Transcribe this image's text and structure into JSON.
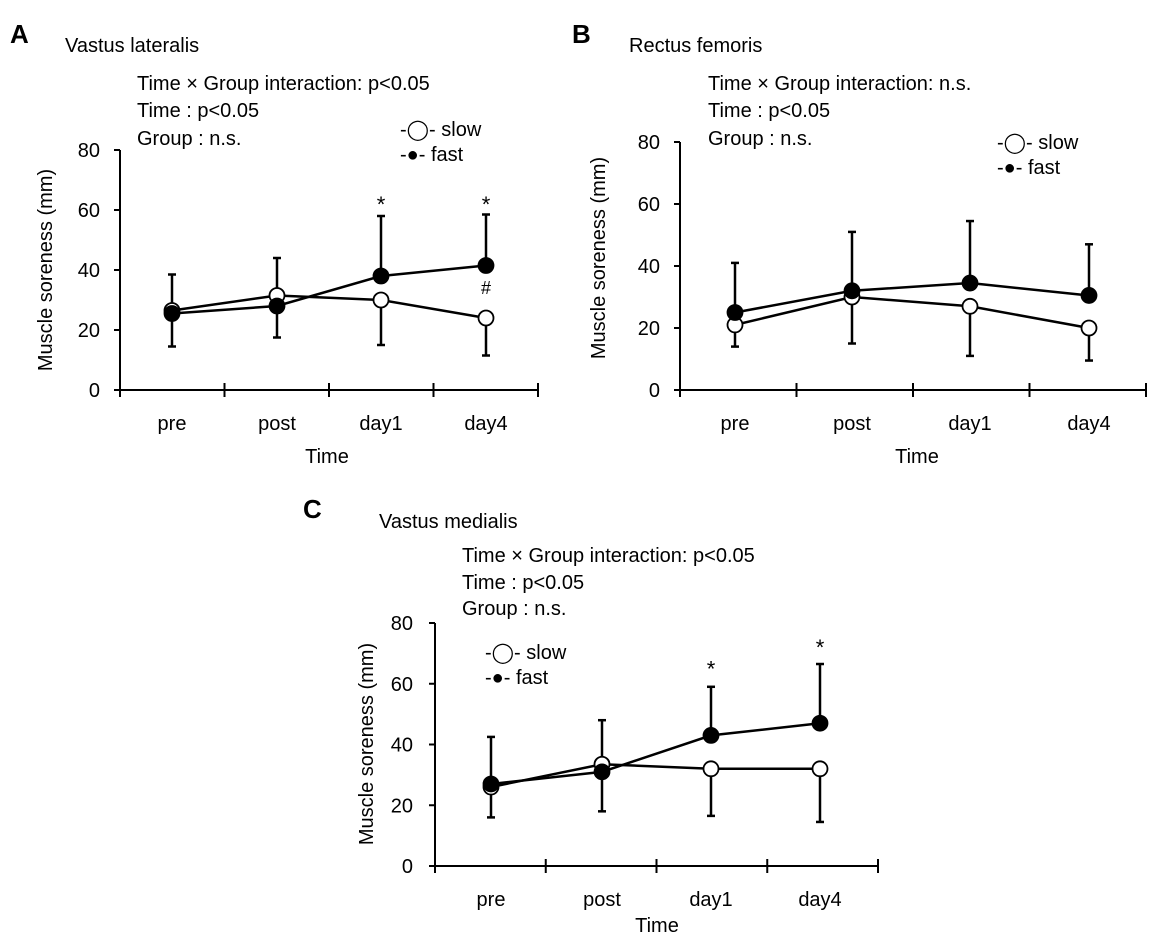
{
  "chart_data": [
    {
      "type": "line",
      "panel": "A",
      "title": "Vastus lateralis",
      "stats": [
        "Time × Group interaction: p<0.05",
        "Time : p<0.05",
        "Group : n.s."
      ],
      "xlabel": "Time",
      "ylabel": "Muscle soreness (mm)",
      "ylim": [
        0,
        80
      ],
      "yticks": [
        0,
        20,
        40,
        60,
        80
      ],
      "categories": [
        "pre",
        "post",
        "day1",
        "day4"
      ],
      "series": [
        {
          "name": "slow",
          "marker": "open",
          "values": [
            26.5,
            31.5,
            30,
            24
          ],
          "sd": [
            12,
            14,
            15,
            12.5
          ],
          "legend_label": "-◯- slow"
        },
        {
          "name": "fast",
          "marker": "filled",
          "values": [
            25.5,
            28,
            38,
            41.5
          ],
          "sd": [
            13,
            16,
            20,
            17
          ],
          "legend_label": "-●- fast"
        }
      ],
      "annotations": [
        {
          "category": "day1",
          "symbol": "*",
          "y": 64
        },
        {
          "category": "day4",
          "symbol": "*",
          "y": 64
        },
        {
          "category": "day4",
          "symbol": "#",
          "y": 32
        }
      ]
    },
    {
      "type": "line",
      "panel": "B",
      "title": "Rectus femoris",
      "stats": [
        "Time × Group interaction: n.s.",
        "Time : p<0.05",
        "Group : n.s."
      ],
      "xlabel": "Time",
      "ylabel": "Muscle soreness (mm)",
      "ylim": [
        0,
        80
      ],
      "yticks": [
        0,
        20,
        40,
        60,
        80
      ],
      "categories": [
        "pre",
        "post",
        "day1",
        "day4"
      ],
      "series": [
        {
          "name": "slow",
          "marker": "open",
          "values": [
            21,
            30,
            27,
            20
          ],
          "sd": [
            7,
            15,
            16,
            10.5
          ],
          "legend_label": "-◯- slow"
        },
        {
          "name": "fast",
          "marker": "filled",
          "values": [
            25,
            32,
            34.5,
            30.5
          ],
          "sd": [
            16,
            19,
            20,
            16.5
          ],
          "legend_label": "-●- fast"
        }
      ],
      "annotations": []
    },
    {
      "type": "line",
      "panel": "C",
      "title": "Vastus medialis",
      "stats": [
        "Time × Group interaction: p<0.05",
        "Time : p<0.05",
        "Group : n.s."
      ],
      "xlabel": "Time",
      "ylabel": "Muscle soreness (mm)",
      "ylim": [
        0,
        80
      ],
      "yticks": [
        0,
        20,
        40,
        60,
        80
      ],
      "categories": [
        "pre",
        "post",
        "day1",
        "day4"
      ],
      "series": [
        {
          "name": "slow",
          "marker": "open",
          "values": [
            26,
            33.5,
            32,
            32
          ],
          "sd": [
            10,
            15.5,
            15.5,
            17.5
          ],
          "legend_label": "-◯- slow"
        },
        {
          "name": "fast",
          "marker": "filled",
          "values": [
            27,
            31,
            43,
            47
          ],
          "sd": [
            15.5,
            17,
            16,
            19.5
          ],
          "legend_label": "-●- fast"
        }
      ],
      "annotations": [
        {
          "category": "day1",
          "symbol": "*",
          "y": 67
        },
        {
          "category": "day4",
          "symbol": "*",
          "y": 74
        }
      ]
    }
  ]
}
